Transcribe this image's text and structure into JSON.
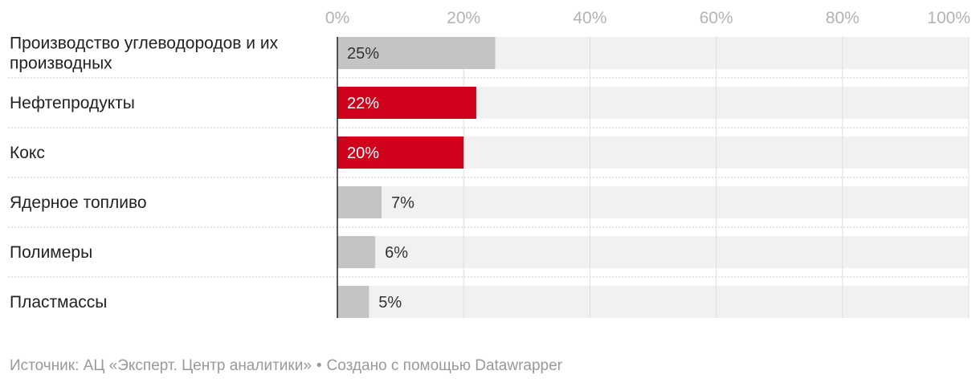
{
  "chart_data": {
    "type": "bar",
    "orientation": "horizontal",
    "categories": [
      [
        "Производство углеводородов и их",
        "производных"
      ],
      [
        "Нефтепродукты"
      ],
      [
        "Кокс"
      ],
      [
        "Ядерное топливо"
      ],
      [
        "Полимеры"
      ],
      [
        "Пластмассы"
      ]
    ],
    "values": [
      25,
      22,
      20,
      7,
      6,
      5
    ],
    "value_labels": [
      "25%",
      "22%",
      "20%",
      "7%",
      "6%",
      "5%"
    ],
    "highlight": [
      false,
      true,
      true,
      false,
      false,
      false
    ],
    "xlim": [
      0,
      100
    ],
    "ticks": [
      0,
      20,
      40,
      60,
      80,
      100
    ],
    "tick_labels": [
      "0%",
      "20%",
      "40%",
      "60%",
      "80%",
      "100%"
    ],
    "grid": true,
    "colors": {
      "bar_default": "#c4c4c4",
      "bar_highlight": "#d0021b",
      "track": "#f1f1f1",
      "grid": "#dedede",
      "axis": "#222222"
    }
  },
  "footer": {
    "source": "Источник: АЦ «Эксперт. Центр аналитики»",
    "separator": "•",
    "credit": "Создано с помощью Datawrapper"
  }
}
